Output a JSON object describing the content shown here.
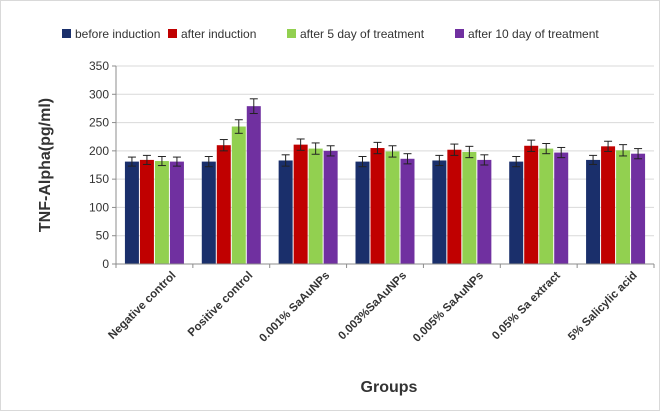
{
  "chart_data": {
    "type": "bar",
    "title": "",
    "xlabel": "Groups",
    "ylabel": "TNF-Alpha(pg/ml)",
    "ylim": [
      0,
      350
    ],
    "yticks": [
      0,
      50,
      100,
      150,
      200,
      250,
      300,
      350
    ],
    "grid": true,
    "legend_position": "top",
    "categories": [
      "Negative control",
      "Positive control",
      "0.001% SaAuNPs",
      "0.003%SaAuNPs",
      "0.005% SaAuNPs",
      "0.05% Sa extract",
      "5% Salicylic acid"
    ],
    "series": [
      {
        "name": "before induction",
        "color": "#1a2f6b",
        "values": [
          181,
          181,
          183,
          181,
          183,
          181,
          184
        ],
        "errors": [
          8,
          9,
          10,
          9,
          9,
          9,
          8
        ]
      },
      {
        "name": "after induction",
        "color": "#c00000",
        "values": [
          184,
          210,
          211,
          205,
          202,
          209,
          208
        ],
        "errors": [
          8,
          10,
          10,
          10,
          10,
          10,
          9
        ]
      },
      {
        "name": "after 5 day of treatment",
        "color": "#92d050",
        "values": [
          182,
          243,
          204,
          199,
          198,
          204,
          201
        ],
        "errors": [
          8,
          12,
          10,
          10,
          10,
          9,
          10
        ]
      },
      {
        "name": "after 10 day of treatment",
        "color": "#7030a0",
        "values": [
          181,
          279,
          200,
          186,
          184,
          197,
          195
        ],
        "errors": [
          8,
          13,
          9,
          9,
          9,
          9,
          9
        ]
      }
    ]
  }
}
